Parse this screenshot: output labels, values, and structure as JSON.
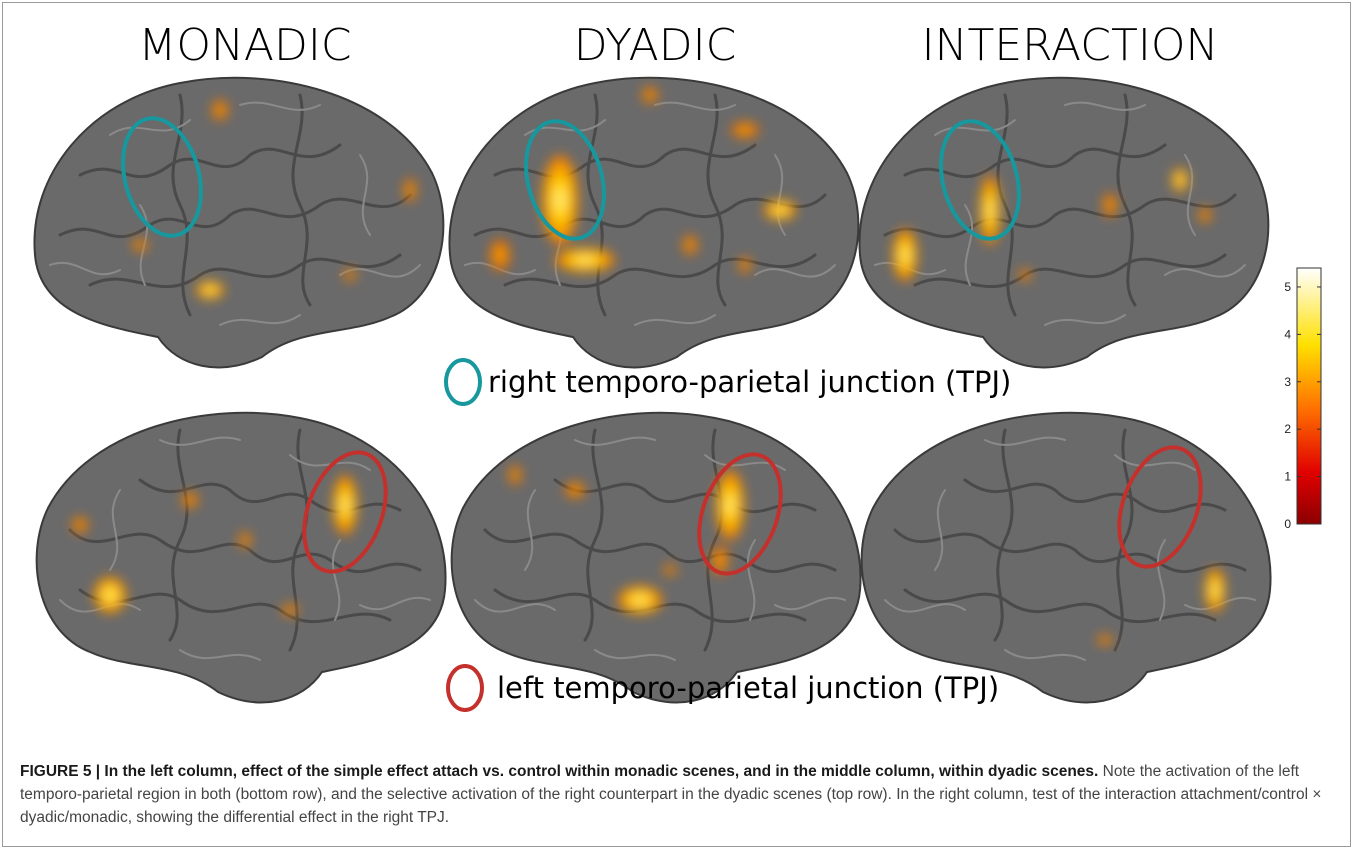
{
  "columns": [
    "MONADIC",
    "DYADIC",
    "INTERACTION"
  ],
  "legend": [
    "right temporo-parietal junction (TPJ)",
    "left temporo-parietal junction (TPJ)"
  ],
  "colorbar": {
    "lim": [
      0,
      5.4
    ],
    "ticks": [
      0,
      1,
      2,
      3,
      4,
      5
    ]
  },
  "caption": {
    "title": "FIGURE 5 | In the left column, effect of the simple effect attach vs. control within monadic scenes, and in the middle column, within dyadic scenes.",
    "text": "Note the activation of the left temporo-parietal region in both (bottom row), and the selective activation of the right counterpart in the dyadic scenes (top row). In the right column, test of the interaction attachment/control × dyadic/monadic, showing the differential effect in the right TPJ."
  }
}
